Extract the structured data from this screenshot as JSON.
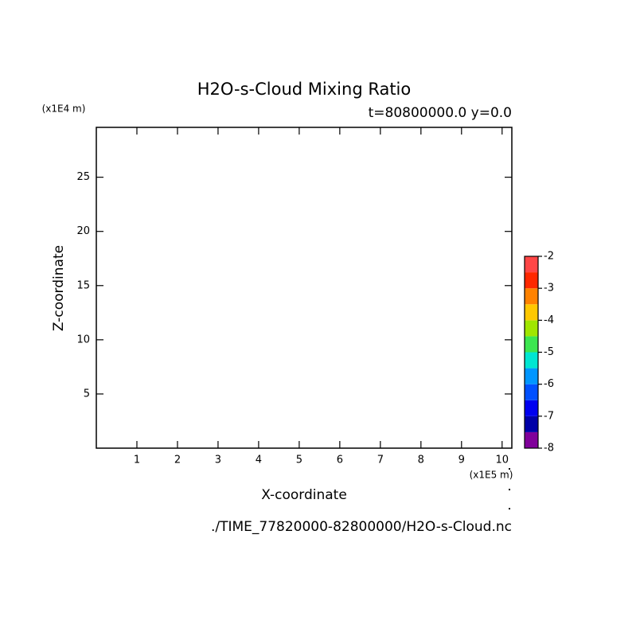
{
  "chart_data": {
    "type": "contour",
    "title": "H2O-s-Cloud Mixing Ratio",
    "subtitle": "t=80800000.0 y=0.0",
    "xlabel": "X-coordinate",
    "ylabel": "Z-coordinate",
    "xunit": "(x1E5 m)",
    "yunit": "(x1E4 m)",
    "footer": "./TIME_77820000-82800000/H2O-s-Cloud.nc",
    "xlim": [
      0,
      10.24
    ],
    "xticks": [
      1,
      2,
      3,
      4,
      5,
      6,
      7,
      8,
      9,
      10
    ],
    "ylim": [
      0,
      29.6
    ],
    "yticks": [
      5,
      10,
      15,
      20,
      25
    ],
    "colorbar": {
      "levels": [
        -8,
        -7.5,
        -7,
        -6.5,
        -6,
        -5.5,
        -5,
        -4.5,
        -4,
        -3.5,
        -3,
        -2.5,
        -2
      ],
      "colors": [
        "#80009a",
        "#0000a8",
        "#0000f0",
        "#0050ff",
        "#0096ff",
        "#00e6d2",
        "#3ce650",
        "#a0e600",
        "#ffc800",
        "#ff8200",
        "#ff2800",
        "#ff4646",
        "#ffaaaa"
      ],
      "ticks": [
        -8,
        -7,
        -6,
        -5,
        -4,
        -3,
        -2
      ]
    }
  }
}
